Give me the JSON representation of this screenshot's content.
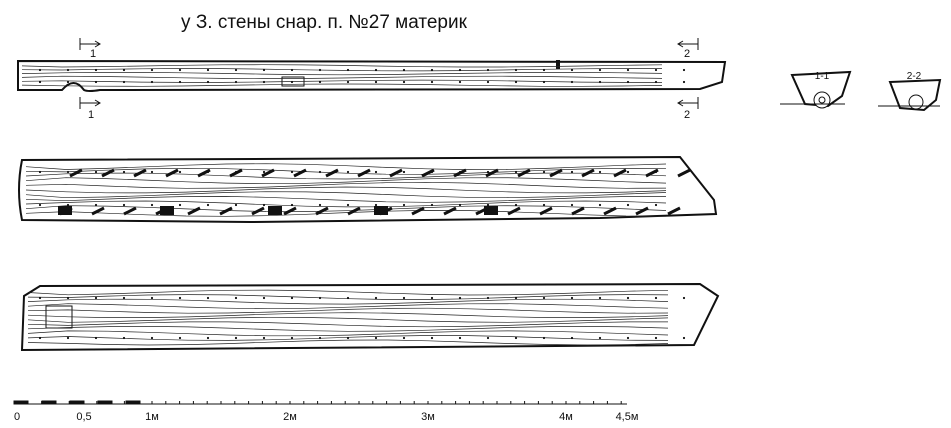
{
  "title": "у З. стены снар. п. №27 материк",
  "section_markers": {
    "top_left": "1",
    "bottom_left": "1",
    "top_right": "2",
    "bottom_right": "2"
  },
  "sections": [
    "1-1",
    "2-2"
  ],
  "scale": {
    "labels": [
      "0",
      "0,5",
      "1м",
      "2м",
      "3м",
      "4м",
      "4,5м"
    ]
  }
}
